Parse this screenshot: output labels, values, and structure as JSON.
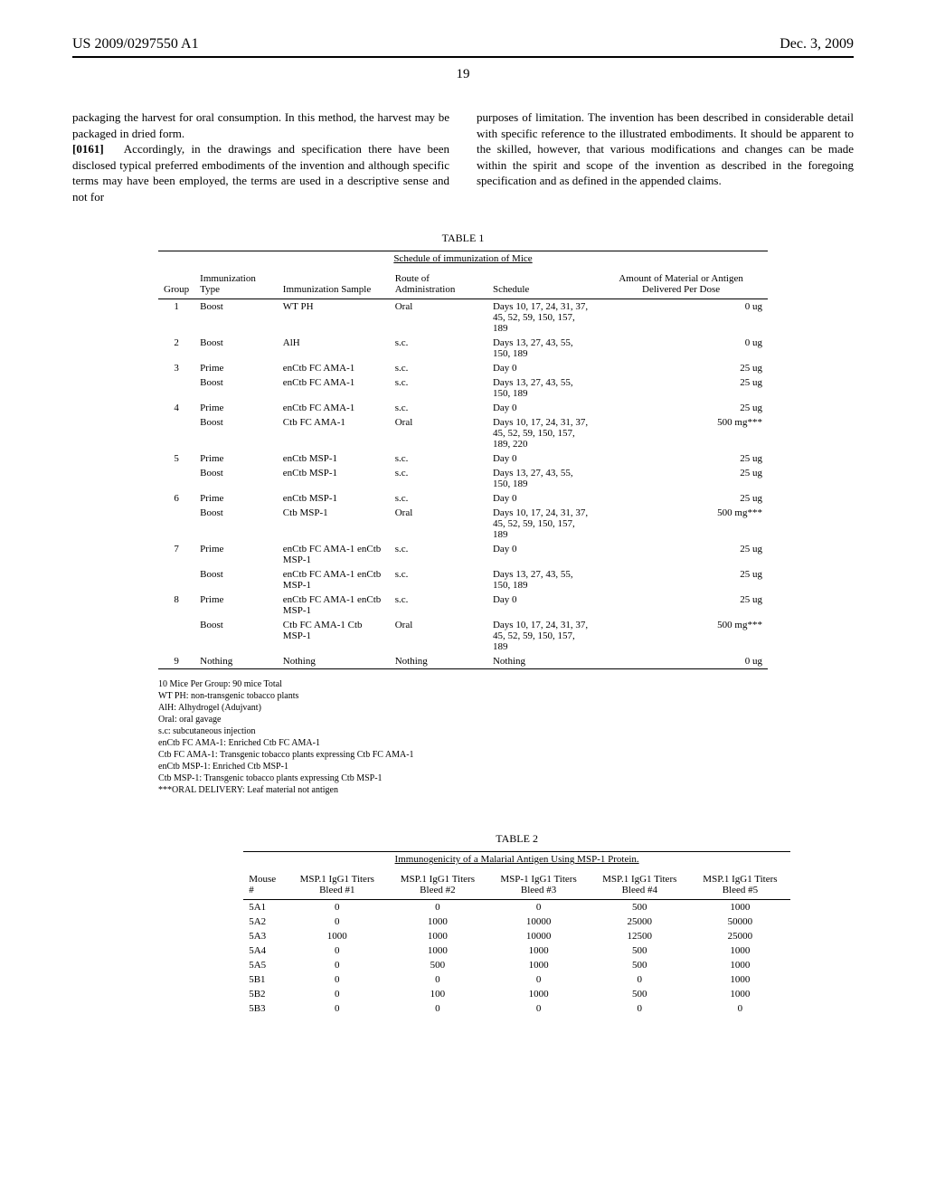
{
  "header": {
    "pub_number": "US 2009/0297550 A1",
    "pub_date": "Dec. 3, 2009",
    "page_number": "19"
  },
  "body": {
    "left_col_1": "packaging the harvest for oral consumption. In this method, the harvest may be packaged in dried form.",
    "left_para_label": "[0161]",
    "left_col_2": "Accordingly, in the drawings and specification there have been disclosed typical preferred embodiments of the invention and although specific terms may have been employed, the terms are used in a descriptive sense and not for",
    "right_col": "purposes of limitation. The invention has been described in considerable detail with specific reference to the illustrated embodiments. It should be apparent to the skilled, however, that various modifications and changes can be made within the spirit and scope of the invention as described in the foregoing specification and as defined in the appended claims."
  },
  "table1": {
    "label": "TABLE 1",
    "caption": "Schedule of immunization of Mice",
    "headers": [
      "Group",
      "Immunization Type",
      "Immunization Sample",
      "Route of Administration",
      "Schedule",
      "Amount of Material or Antigen Delivered Per Dose"
    ],
    "rows": [
      [
        "1",
        "Boost",
        "WT PH",
        "Oral",
        "Days 10, 17, 24, 31, 37, 45, 52, 59, 150, 157, 189",
        "0 ug"
      ],
      [
        "2",
        "Boost",
        "AlH",
        "s.c.",
        "Days 13, 27, 43, 55, 150, 189",
        "0 ug"
      ],
      [
        "3",
        "Prime",
        "enCtb FC AMA-1",
        "s.c.",
        "Day 0",
        "25 ug"
      ],
      [
        "",
        "Boost",
        "enCtb FC AMA-1",
        "s.c.",
        "Days 13, 27, 43, 55, 150, 189",
        "25 ug"
      ],
      [
        "4",
        "Prime",
        "enCtb FC AMA-1",
        "s.c.",
        "Day 0",
        "25 ug"
      ],
      [
        "",
        "Boost",
        "Ctb FC AMA-1",
        "Oral",
        "Days 10, 17, 24, 31, 37, 45, 52, 59, 150, 157, 189, 220",
        "500 mg***"
      ],
      [
        "5",
        "Prime",
        "enCtb MSP-1",
        "s.c.",
        "Day 0",
        "25 ug"
      ],
      [
        "",
        "Boost",
        "enCtb MSP-1",
        "s.c.",
        "Days 13, 27, 43, 55, 150, 189",
        "25 ug"
      ],
      [
        "6",
        "Prime",
        "enCtb MSP-1",
        "s.c.",
        "Day 0",
        "25 ug"
      ],
      [
        "",
        "Boost",
        "Ctb MSP-1",
        "Oral",
        "Days 10, 17, 24, 31, 37, 45, 52, 59, 150, 157, 189",
        "500 mg***"
      ],
      [
        "7",
        "Prime",
        "enCtb FC AMA-1 enCtb MSP-1",
        "s.c.",
        "Day 0",
        "25 ug"
      ],
      [
        "",
        "Boost",
        "enCtb FC AMA-1 enCtb MSP-1",
        "s.c.",
        "Days 13, 27, 43, 55, 150, 189",
        "25 ug"
      ],
      [
        "8",
        "Prime",
        "enCtb FC AMA-1 enCtb MSP-1",
        "s.c.",
        "Day 0",
        "25 ug"
      ],
      [
        "",
        "Boost",
        "Ctb FC AMA-1 Ctb MSP-1",
        "Oral",
        "Days 10, 17, 24, 31, 37, 45, 52, 59, 150, 157, 189",
        "500 mg***"
      ],
      [
        "9",
        "Nothing",
        "Nothing",
        "Nothing",
        "Nothing",
        "0 ug"
      ]
    ],
    "footnotes": [
      "10 Mice Per Group: 90 mice Total",
      "WT PH: non-transgenic tobacco plants",
      "AlH: Alhydrogel (Adujvant)",
      "Oral: oral gavage",
      "s.c: subcutaneous injection",
      "enCtb FC AMA-1: Enriched Ctb FC AMA-1",
      "Ctb FC AMA-1: Transgenic tobacco plants expressing Ctb FC AMA-1",
      "enCtb MSP-1: Enriched Ctb MSP-1",
      "Ctb MSP-1: Transgenic tobacco plants expressing Ctb MSP-1",
      "***ORAL DELIVERY: Leaf material not antigen"
    ]
  },
  "table2": {
    "label": "TABLE 2",
    "caption": "Immunogenicity of a Malarial Antigen Using MSP-1 Protein.",
    "headers": [
      "Mouse #",
      "MSP.1 IgG1 Titers Bleed #1",
      "MSP.1 IgG1 Titers Bleed #2",
      "MSP-1 IgG1 Titers Bleed #3",
      "MSP.1 IgG1 Titers Bleed #4",
      "MSP.1 IgG1 Titers Bleed #5"
    ],
    "rows": [
      [
        "5A1",
        "0",
        "0",
        "0",
        "500",
        "1000"
      ],
      [
        "5A2",
        "0",
        "1000",
        "10000",
        "25000",
        "50000"
      ],
      [
        "5A3",
        "1000",
        "1000",
        "10000",
        "12500",
        "25000"
      ],
      [
        "5A4",
        "0",
        "1000",
        "1000",
        "500",
        "1000"
      ],
      [
        "5A5",
        "0",
        "500",
        "1000",
        "500",
        "1000"
      ],
      [
        "5B1",
        "0",
        "0",
        "0",
        "0",
        "1000"
      ],
      [
        "5B2",
        "0",
        "100",
        "1000",
        "500",
        "1000"
      ],
      [
        "5B3",
        "0",
        "0",
        "0",
        "0",
        "0"
      ]
    ]
  }
}
